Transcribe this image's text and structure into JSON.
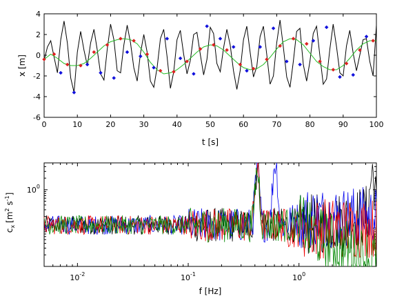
{
  "chart_data": [
    {
      "type": "line",
      "xlabel": "t [s]",
      "ylabel": "x [m]",
      "xlim": [
        0,
        100
      ],
      "ylim": [
        -6,
        4
      ],
      "xticks": [
        "0",
        "10",
        "20",
        "30",
        "40",
        "50",
        "60",
        "70",
        "80",
        "90",
        "100"
      ],
      "yticks": [
        "-6",
        "-4",
        "-2",
        "0",
        "2",
        "4"
      ],
      "series": [
        {
          "role": "signal",
          "color": "#000000",
          "x": [
            0,
            1,
            2,
            3,
            4,
            5,
            6,
            7,
            8,
            9,
            10,
            11,
            12,
            13,
            14,
            15,
            16,
            17,
            18,
            19,
            20,
            21,
            22,
            23,
            24,
            25,
            26,
            27,
            28,
            29,
            30,
            31,
            32,
            33,
            34,
            35,
            36,
            37,
            38,
            39,
            40,
            41,
            42,
            43,
            44,
            45,
            46,
            47,
            48,
            49,
            50,
            51,
            52,
            53,
            54,
            55,
            56,
            57,
            58,
            59,
            60,
            61,
            62,
            63,
            64,
            65,
            66,
            67,
            68,
            69,
            70,
            71,
            72,
            73,
            74,
            75,
            76,
            77,
            78,
            79,
            80,
            81,
            82,
            83,
            84,
            85,
            86,
            87,
            88,
            89,
            90,
            91,
            92,
            93,
            94,
            95,
            96,
            97,
            98,
            99,
            100
          ],
          "y": [
            -0.5,
            0.8,
            1.4,
            -0.2,
            -1.7,
            1.5,
            3.3,
            1.2,
            -2.2,
            -3.6,
            0.3,
            2.3,
            0.5,
            -1.0,
            1.2,
            2.5,
            0.5,
            -1.8,
            -2.4,
            0.6,
            3.0,
            1.5,
            -1.5,
            -1.7,
            1.0,
            2.9,
            1.2,
            -1.2,
            -2.5,
            0.2,
            2.0,
            0.3,
            -2.5,
            -3.1,
            -1.2,
            1.6,
            2.5,
            -0.1,
            -3.2,
            -1.6,
            1.5,
            2.4,
            0.1,
            -1.8,
            -0.5,
            2.0,
            2.2,
            0.1,
            -1.9,
            -0.4,
            2.7,
            2.1,
            -0.8,
            -1.6,
            0.7,
            2.5,
            1.0,
            -1.5,
            -3.3,
            -1.5,
            1.5,
            2.8,
            0.3,
            -2.1,
            -1.1,
            1.8,
            2.8,
            0.1,
            -2.8,
            -2.0,
            1.2,
            3.4,
            0.8,
            -2.1,
            -3.1,
            -0.6,
            2.3,
            2.6,
            -0.9,
            -2.5,
            -0.6,
            2.1,
            2.8,
            -0.1,
            -2.8,
            -2.3,
            0.6,
            3.0,
            0.8,
            -1.7,
            -2.0,
            0.9,
            2.4,
            0.2,
            -1.5,
            0.0,
            1.5,
            1.6,
            -0.6,
            -2.0,
            2.9
          ]
        },
        {
          "role": "smooth",
          "color": "#22bb22",
          "x": [
            0,
            2,
            4,
            6,
            8,
            10,
            12,
            14,
            16,
            18,
            20,
            22,
            24,
            26,
            28,
            30,
            32,
            34,
            36,
            38,
            40,
            42,
            44,
            46,
            48,
            50,
            52,
            54,
            56,
            58,
            60,
            62,
            64,
            66,
            68,
            70,
            72,
            74,
            76,
            78,
            80,
            82,
            84,
            86,
            88,
            90,
            92,
            94,
            96,
            98,
            100
          ],
          "y": [
            -0.4,
            0.1,
            -0.3,
            -0.8,
            -1.0,
            -1.0,
            -0.8,
            -0.3,
            0.3,
            0.9,
            1.3,
            1.5,
            1.6,
            1.5,
            1.1,
            0.3,
            -0.7,
            -1.4,
            -1.8,
            -1.7,
            -1.4,
            -0.9,
            -0.3,
            0.3,
            0.8,
            1.0,
            0.9,
            0.5,
            -0.1,
            -0.7,
            -1.2,
            -1.4,
            -1.3,
            -0.9,
            -0.2,
            0.6,
            1.3,
            1.6,
            1.5,
            1.0,
            0.2,
            -0.6,
            -1.1,
            -1.4,
            -1.4,
            -1.0,
            -0.3,
            0.5,
            1.1,
            1.4,
            1.4
          ]
        },
        {
          "role": "samples-blue",
          "color": "#1111dd",
          "x": [
            5,
            9,
            13,
            17,
            21,
            25,
            29,
            33,
            37,
            41,
            45,
            49,
            53,
            57,
            61,
            65,
            69,
            73,
            77,
            81,
            85,
            89,
            93,
            97
          ],
          "y": [
            -1.7,
            -3.6,
            -0.9,
            -1.7,
            -2.2,
            0.3,
            -0.1,
            -1.2,
            1.6,
            -0.3,
            -1.8,
            2.8,
            1.6,
            0.8,
            -1.5,
            0.8,
            2.6,
            -0.6,
            -0.9,
            1.4,
            2.7,
            -2.1,
            -1.9,
            1.8
          ]
        },
        {
          "role": "samples-red",
          "color": "#dd2222",
          "x": [
            0,
            3,
            7,
            11,
            15,
            19,
            23,
            27,
            31,
            35,
            39,
            43,
            47,
            51,
            55,
            59,
            63,
            67,
            71,
            75,
            79,
            83,
            87,
            91,
            95,
            99
          ],
          "y": [
            -0.4,
            0.1,
            -0.9,
            -1.0,
            0.3,
            1.0,
            1.6,
            1.4,
            0.1,
            -1.5,
            -1.6,
            -0.6,
            0.6,
            1.0,
            0.5,
            -0.9,
            -1.3,
            -0.4,
            0.9,
            1.6,
            1.1,
            -0.6,
            -1.4,
            -0.8,
            0.5,
            1.4
          ]
        }
      ]
    },
    {
      "type": "line",
      "xlabel": "f [Hz]",
      "ylabel": "c",
      "ylabel_sub": "x",
      "ylabel_units": "[m",
      "ylabel_sup1": "2",
      "ylabel_units2": " s",
      "ylabel_sup2": "-1",
      "ylabel_close": "]",
      "xscale": "log",
      "yscale": "log",
      "xlim": [
        0.005,
        5
      ],
      "ylim": [
        0.01,
        5
      ],
      "xticks": [
        {
          "value": 0.01,
          "base": "10",
          "exp": "-2"
        },
        {
          "value": 0.1,
          "base": "10",
          "exp": "-1"
        },
        {
          "value": 1,
          "base": "10",
          "exp": "0"
        }
      ],
      "yticks": [
        {
          "value": 1,
          "base": "10",
          "exp": "0"
        }
      ],
      "series": [
        {
          "role": "spectrum-1",
          "color": "#000000",
          "peaks": [
            [
              0.42,
              3.0
            ],
            [
              4.6,
              2.5
            ]
          ],
          "noise_floor": [
            [
              1.2,
              0.12
            ],
            [
              2.5,
              0.15
            ],
            [
              4.5,
              0.25
            ]
          ]
        },
        {
          "role": "spectrum-2",
          "color": "#0000ee",
          "peaks": [
            [
              0.42,
              2.5
            ],
            [
              0.61,
              5.0
            ]
          ],
          "noise_floor": [
            [
              0.8,
              0.15
            ],
            [
              1.2,
              0.2
            ]
          ]
        },
        {
          "role": "spectrum-3",
          "color": "#ee0000",
          "peaks": [
            [
              0.42,
              3.0
            ]
          ],
          "noise_floor": [
            [
              0.8,
              0.08
            ],
            [
              1.2,
              0.1
            ]
          ]
        },
        {
          "role": "spectrum-4",
          "color": "#008800",
          "peaks": [
            [
              0.42,
              2.8
            ]
          ],
          "noise_floor": [
            [
              1.2,
              0.08
            ],
            [
              2.5,
              0.03
            ],
            [
              4.5,
              0.015
            ]
          ]
        }
      ]
    }
  ]
}
